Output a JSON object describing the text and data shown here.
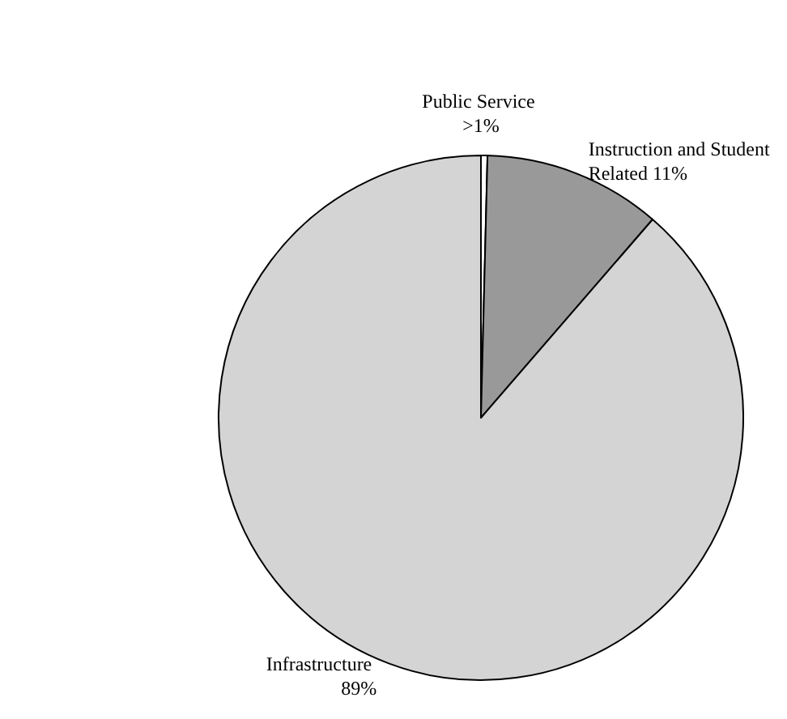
{
  "chart_data": {
    "type": "pie",
    "categories": [
      "Public Service",
      "Instruction and Student Related",
      "Infrastructure"
    ],
    "values": [
      0.4,
      11,
      89
    ],
    "value_labels": [
      ">1%",
      "11%",
      "89%"
    ],
    "colors": [
      "#ffffff",
      "#999999",
      "#d4d4d4"
    ],
    "legend": false
  }
}
